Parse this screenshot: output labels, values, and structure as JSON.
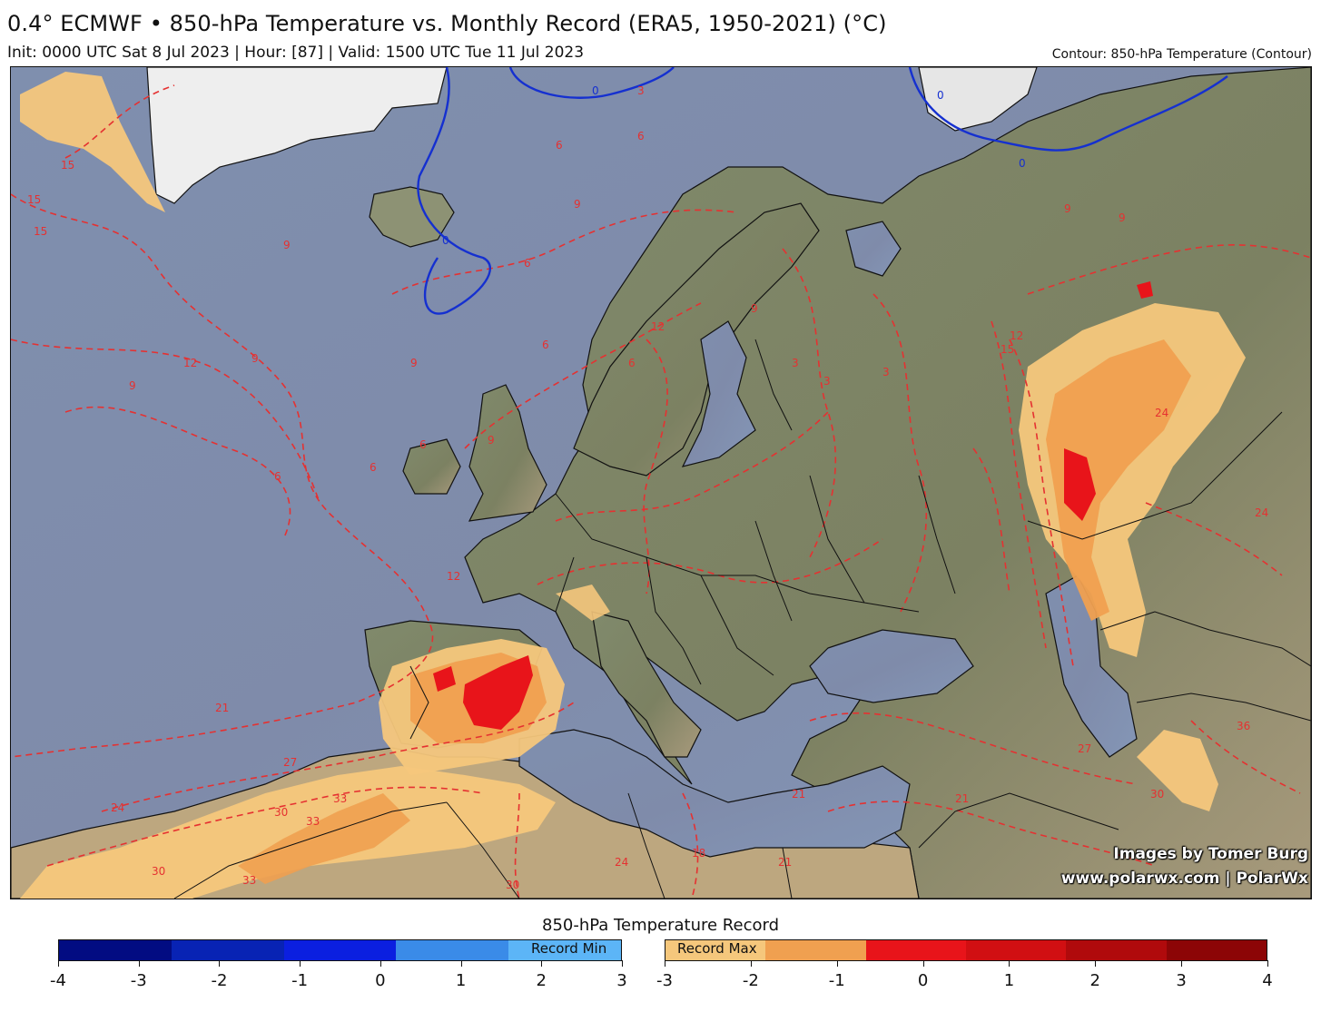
{
  "header": {
    "title": "0.4° ECMWF • 850-hPa Temperature vs. Monthly Record (ERA5, 1950-2021) (°C)",
    "subtitle": "Init: 0000 UTC Sat 8 Jul 2023 | Hour: [87] | Valid: 1500 UTC Tue 11 Jul 2023",
    "contour_label": "Contour: 850-hPa Temperature (Contour)"
  },
  "credits": {
    "line1": "Images by Tomer Burg",
    "line2": "www.polarwx.com | PolarWx"
  },
  "contour_labels": [
    "15",
    "15",
    "15",
    "9",
    "9",
    "12",
    "9",
    "6",
    "6",
    "9",
    "6",
    "6",
    "6",
    "6",
    "9",
    "9",
    "6",
    "3",
    "3",
    "0",
    "0",
    "0",
    "0",
    "3",
    "3",
    "9",
    "12",
    "15",
    "24",
    "24",
    "21",
    "27",
    "24",
    "30",
    "33",
    "33",
    "30",
    "33",
    "27",
    "21",
    "18",
    "30",
    "24",
    "21",
    "21",
    "36",
    "30",
    "12",
    "6",
    "9",
    "9",
    "12"
  ],
  "colorbar": {
    "title": "850-hPa Temperature Record",
    "min_label": "Record Min",
    "max_label": "Record Max",
    "min_ticks": [
      "-4",
      "-3",
      "-2",
      "-1",
      "0",
      "1",
      "2",
      "3"
    ],
    "max_ticks": [
      "-3",
      "-2",
      "-1",
      "0",
      "1",
      "2",
      "3",
      "4"
    ],
    "min_colors": [
      "#020c82",
      "#0823b4",
      "#0b1fe0",
      "#3a8be8",
      "#5cb5f7"
    ],
    "max_colors": [
      "#f5c77c",
      "#f0a050",
      "#e8141a",
      "#d10f12",
      "#b00a0c",
      "#8c0506"
    ]
  },
  "colors": {
    "ocean": "#8496b6",
    "land": "#7b8466",
    "snow": "#f2f2f2",
    "contour_warm": "#e53131",
    "contour_cold": "#1530d0",
    "border": "#111111"
  }
}
